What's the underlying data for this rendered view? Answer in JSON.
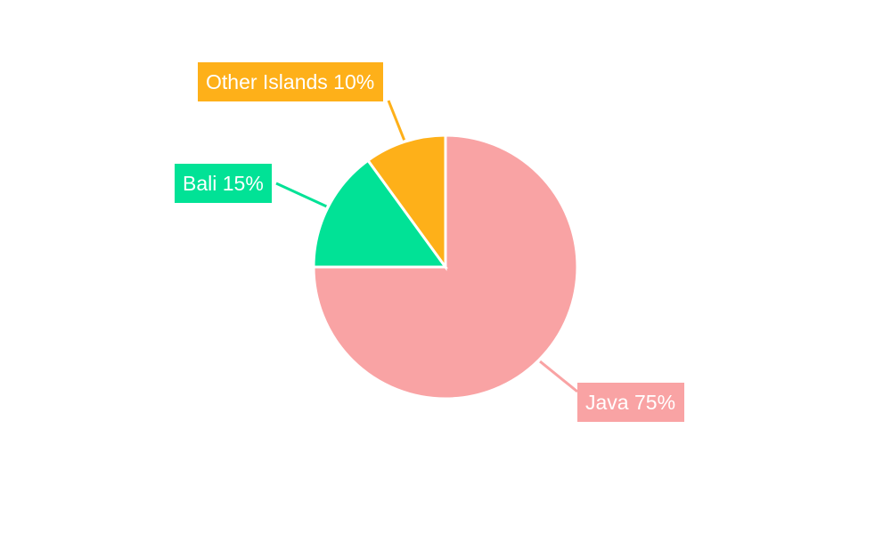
{
  "chart_data": {
    "type": "pie",
    "title": "",
    "start_angle_deg": 0,
    "direction": "clockwise",
    "slices": [
      {
        "name": "Java",
        "value": 75,
        "percent_label": "75%",
        "color": "#f9a3a4"
      },
      {
        "name": "Bali",
        "value": 15,
        "percent_label": "15%",
        "color": "#01e296"
      },
      {
        "name": "Other Islands",
        "value": 10,
        "percent_label": "10%",
        "color": "#feb019"
      }
    ],
    "label_text_color": "#ffffff",
    "legend": "none"
  }
}
